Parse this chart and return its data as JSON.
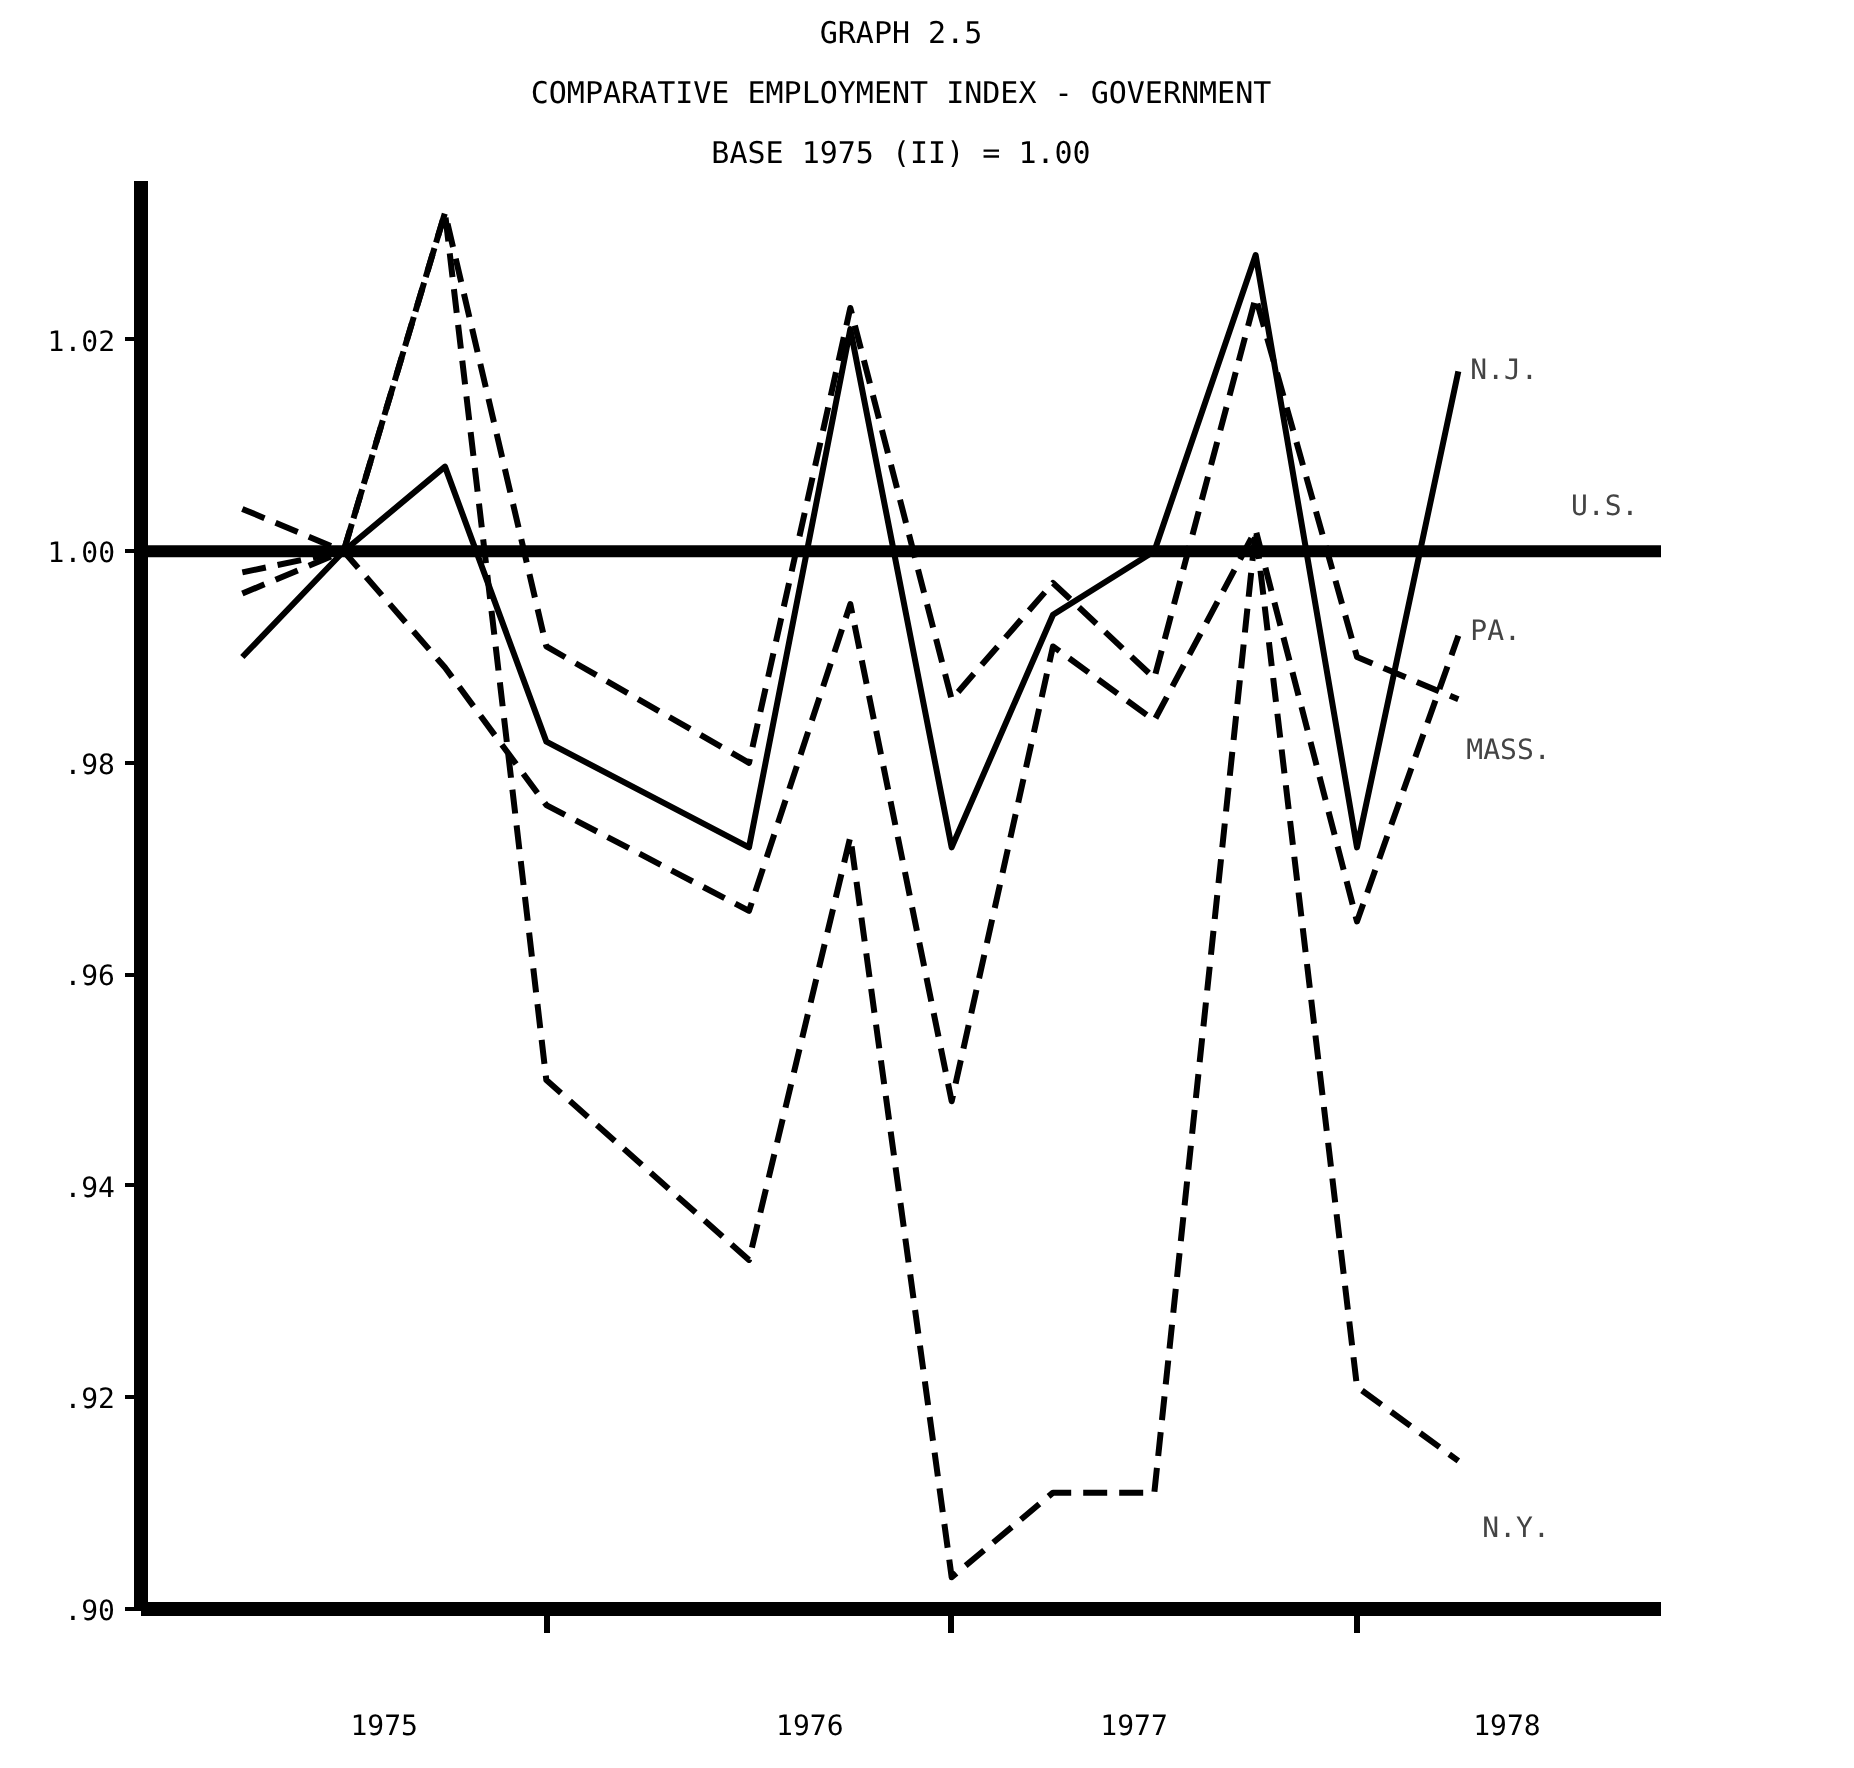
{
  "chart_data": {
    "type": "line",
    "title": "GRAPH 2.5",
    "subtitle": "COMPARATIVE EMPLOYMENT INDEX - GOVERNMENT",
    "annotations": [
      "BASE 1975 (II) = 1.00"
    ],
    "x": [
      1975.0,
      1975.25,
      1975.5,
      1975.75,
      1976.25,
      1976.5,
      1976.75,
      1977.0,
      1977.25,
      1977.5,
      1977.75,
      1978.0
    ],
    "series": [
      {
        "name": "N.J.",
        "color": "#000000",
        "line_style": "solid",
        "values": [
          0.99,
          1.0,
          1.008,
          0.982,
          0.972,
          1.021,
          0.972,
          0.994,
          1.0,
          1.028,
          0.972,
          1.017
        ]
      },
      {
        "name": "PA.",
        "color": "#000000",
        "line_style": "dashed",
        "values": [
          1.004,
          1.0,
          0.989,
          0.976,
          0.966,
          0.995,
          0.948,
          0.991,
          0.984,
          1.002,
          0.965,
          0.992
        ]
      },
      {
        "name": "MASS.",
        "color": "#000000",
        "line_style": "dashed",
        "values": [
          0.998,
          1.0,
          1.032,
          0.991,
          0.98,
          1.023,
          0.986,
          0.997,
          0.988,
          1.024,
          0.99,
          0.986
        ]
      },
      {
        "name": "N.Y.",
        "color": "#000000",
        "line_style": "dashed",
        "values": [
          0.996,
          1.0,
          1.032,
          0.95,
          0.933,
          0.973,
          0.903,
          0.911,
          0.911,
          1.002,
          0.921,
          0.914
        ]
      }
    ],
    "ref_lines": [
      {
        "axis": "y",
        "value": 1.0,
        "label": "U.S.",
        "color": "#000000",
        "line_style": "solid"
      }
    ],
    "xlim": [
      1974.75,
      1978.5
    ],
    "ylim": [
      0.9,
      1.035
    ],
    "xticks": [
      {
        "value": 1975.35,
        "label": "1975"
      },
      {
        "value": 1976.4,
        "label": "1976"
      },
      {
        "value": 1977.2,
        "label": "1977"
      },
      {
        "value": 1978.12,
        "label": "1978"
      },
      {
        "value": 1975.75,
        "label": null
      },
      {
        "value": 1976.75,
        "label": null
      },
      {
        "value": 1977.75,
        "label": null
      }
    ],
    "yticks": [
      {
        "value": 0.9,
        "label": ".90"
      },
      {
        "value": 0.92,
        "label": ".92"
      },
      {
        "value": 0.94,
        "label": ".94"
      },
      {
        "value": 0.96,
        "label": ".96"
      },
      {
        "value": 0.98,
        "label": ".98"
      },
      {
        "value": 1.0,
        "label": "1.00"
      },
      {
        "value": 1.02,
        "label": "1.02"
      }
    ],
    "grid": false
  }
}
